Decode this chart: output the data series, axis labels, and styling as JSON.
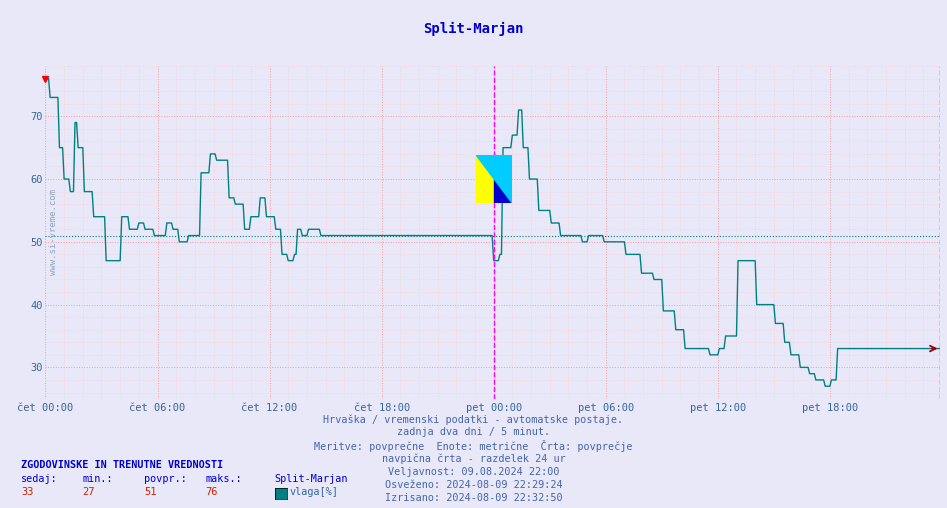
{
  "title": "Split-Marjan",
  "ylim": [
    25,
    78
  ],
  "yticks": [
    30,
    40,
    50,
    60,
    70
  ],
  "avg_value": 51,
  "line_color": "#008080",
  "avg_line_color": "#008080",
  "vline_color": "#ff00ff",
  "background_color": "#e8e8f8",
  "title_color": "#0000cc",
  "text_color": "#4466aa",
  "tick_label_color": "#336699",
  "x_tick_labels": [
    "čet 00:00",
    "čet 06:00",
    "čet 12:00",
    "čet 18:00",
    "pet 00:00",
    "pet 06:00",
    "pet 12:00",
    "pet 18:00"
  ],
  "x_tick_positions": [
    0,
    72,
    144,
    216,
    288,
    360,
    432,
    504
  ],
  "total_points": 576,
  "vline_positions": [
    288,
    575
  ],
  "info_lines": [
    "Hrvaška / vremenski podatki - avtomatske postaje.",
    "zadnja dva dni / 5 minut.",
    "Meritve: povprečne  Enote: metrične  Črta: povprečje",
    "navpična črta - razdelek 24 ur",
    "Veljavnost: 09.08.2024 22:00",
    "Osveženo: 2024-08-09 22:29:24",
    "Izrisano: 2024-08-09 22:32:50"
  ],
  "legend_header": "ZGODOVINSKE IN TRENUTNE VREDNOSTI",
  "legend_col_headers": [
    "sedaj:",
    "min.:",
    "povpr.:",
    "maks.:",
    "Split-Marjan"
  ],
  "legend_vals": [
    "33",
    "27",
    "51",
    "76"
  ],
  "legend_series": "vlaga[%]",
  "legend_series_color": "#008080"
}
